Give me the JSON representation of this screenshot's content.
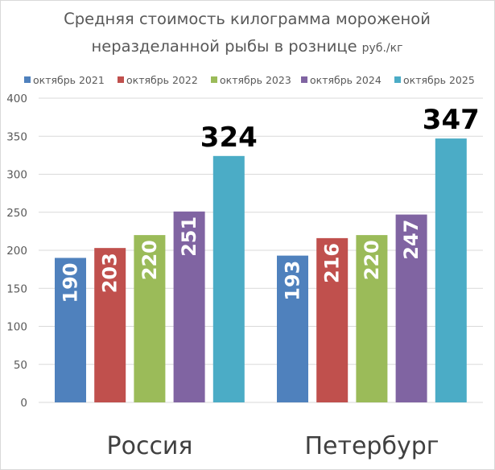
{
  "chart_data": {
    "type": "bar",
    "title": "Средняя стоимость килограмма мороженой",
    "title_line2": "неразделанной рыбы в рознице",
    "unit": "руб./кг",
    "categories": [
      "Россия",
      "Петербург"
    ],
    "series": [
      {
        "name": "октябрь 2021",
        "color": "#4f81bd",
        "values": [
          190,
          193
        ]
      },
      {
        "name": "октябрь 2022",
        "color": "#c0504d",
        "values": [
          203,
          216
        ]
      },
      {
        "name": "октябрь 2023",
        "color": "#9bbb59",
        "values": [
          220,
          220
        ]
      },
      {
        "name": "октябрь 2024",
        "color": "#8064a2",
        "values": [
          251,
          247
        ]
      },
      {
        "name": "октябрь 2025",
        "color": "#4bacc6",
        "values": [
          324,
          347
        ]
      }
    ],
    "ylim": [
      0,
      400
    ],
    "yticks": [
      "0",
      "50",
      "100",
      "150",
      "200",
      "250",
      "300",
      "350",
      "400"
    ],
    "grid": true,
    "legend_position": "top",
    "xlabel": "",
    "ylabel": ""
  }
}
